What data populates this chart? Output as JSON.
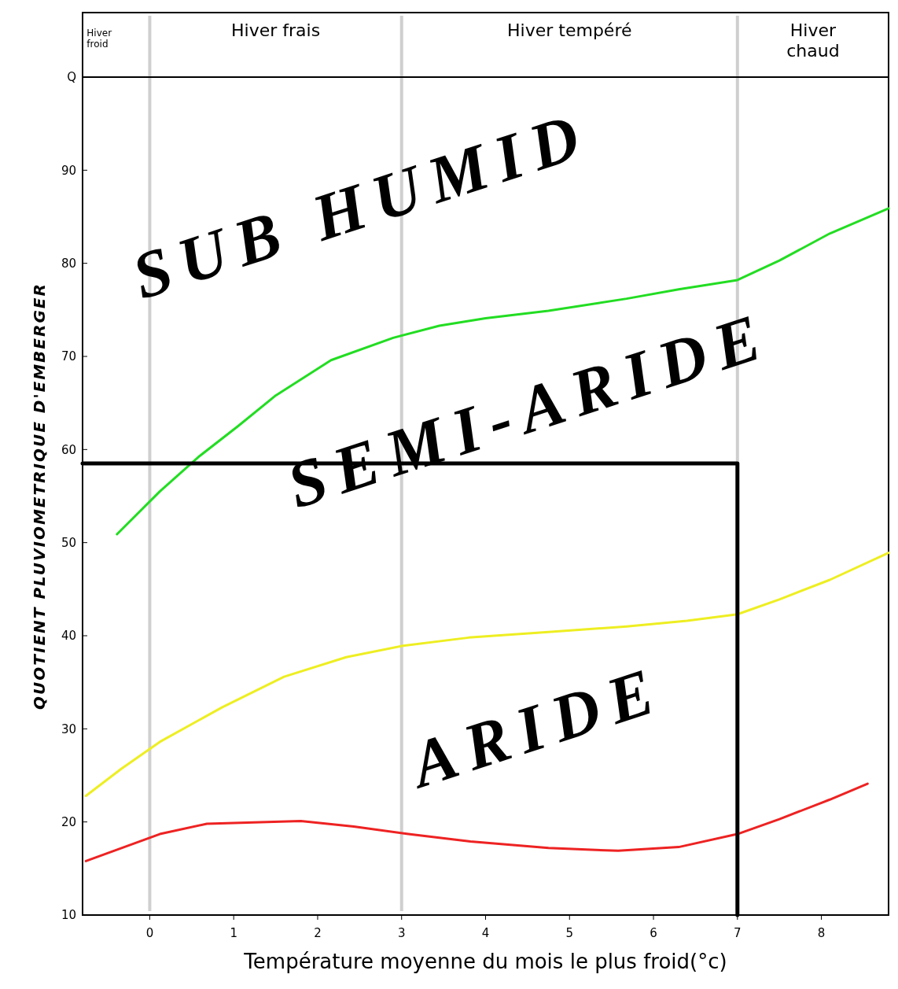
{
  "chart_data": {
    "type": "line",
    "xlabel": "Température moyenne du mois le plus froid(°c)",
    "ylabel": "QUOTIENT PLUVIOMETRIQUE D'EMBERGER",
    "xlim": [
      -0.8,
      8.8
    ],
    "xticks": [
      0,
      1,
      2,
      3,
      4,
      5,
      6,
      7,
      8
    ],
    "ylim": [
      10,
      100
    ],
    "yticks": [
      10,
      20,
      30,
      40,
      50,
      60,
      70,
      80,
      90,
      {
        "value": 100,
        "label": "Q"
      }
    ],
    "series": [
      {
        "color": "#22dd22",
        "x": [
          -0.39,
          0.12,
          0.58,
          1.05,
          1.5,
          2.16,
          2.9,
          3.45,
          4.0,
          4.75,
          5.68,
          6.3,
          7.0,
          7.5,
          8.1,
          8.8
        ],
        "values": [
          50.9,
          55.5,
          59.2,
          62.5,
          65.8,
          69.6,
          72,
          73.3,
          74.1,
          74.9,
          76.2,
          77.2,
          78.2,
          80.3,
          83.2,
          85.9
        ]
      },
      {
        "color": "#eeee22",
        "x": [
          -0.76,
          -0.34,
          0.12,
          0.86,
          1.6,
          2.34,
          3.0,
          3.8,
          4.75,
          5.68,
          6.4,
          7.0,
          7.5,
          8.1,
          8.8
        ],
        "values": [
          22.8,
          25.7,
          28.6,
          32.3,
          35.6,
          37.7,
          38.9,
          39.8,
          40.4,
          41.0,
          41.6,
          42.3,
          43.9,
          46.0,
          48.9
        ]
      },
      {
        "color": "#ee2222",
        "x": [
          -0.76,
          0.12,
          0.68,
          1.8,
          2.43,
          3.08,
          3.82,
          4.75,
          5.58,
          6.3,
          7.0,
          7.5,
          8.1,
          8.55
        ],
        "values": [
          15.8,
          18.7,
          19.8,
          20.1,
          19.5,
          18.7,
          17.9,
          17.2,
          16.9,
          17.3,
          18.7,
          20.3,
          22.4,
          24.1
        ]
      },
      {
        "color": "#000000",
        "x": [
          -0.8,
          7,
          7
        ],
        "values": [
          58.5,
          58.5,
          10
        ]
      }
    ],
    "ref_lines": [
      {
        "axis": "x",
        "value": 0,
        "color": "#cfcfcf"
      },
      {
        "axis": "x",
        "value": 3,
        "color": "#cfcfcf"
      },
      {
        "axis": "x",
        "value": 7,
        "color": "#cfcfcf"
      }
    ],
    "annotations": [
      "Hiver froid",
      "Hiver frais",
      "Hiver tempéré",
      "Hiver chaud",
      "SUB HUMID",
      "SEMI-ARIDE",
      "ARIDE"
    ]
  }
}
